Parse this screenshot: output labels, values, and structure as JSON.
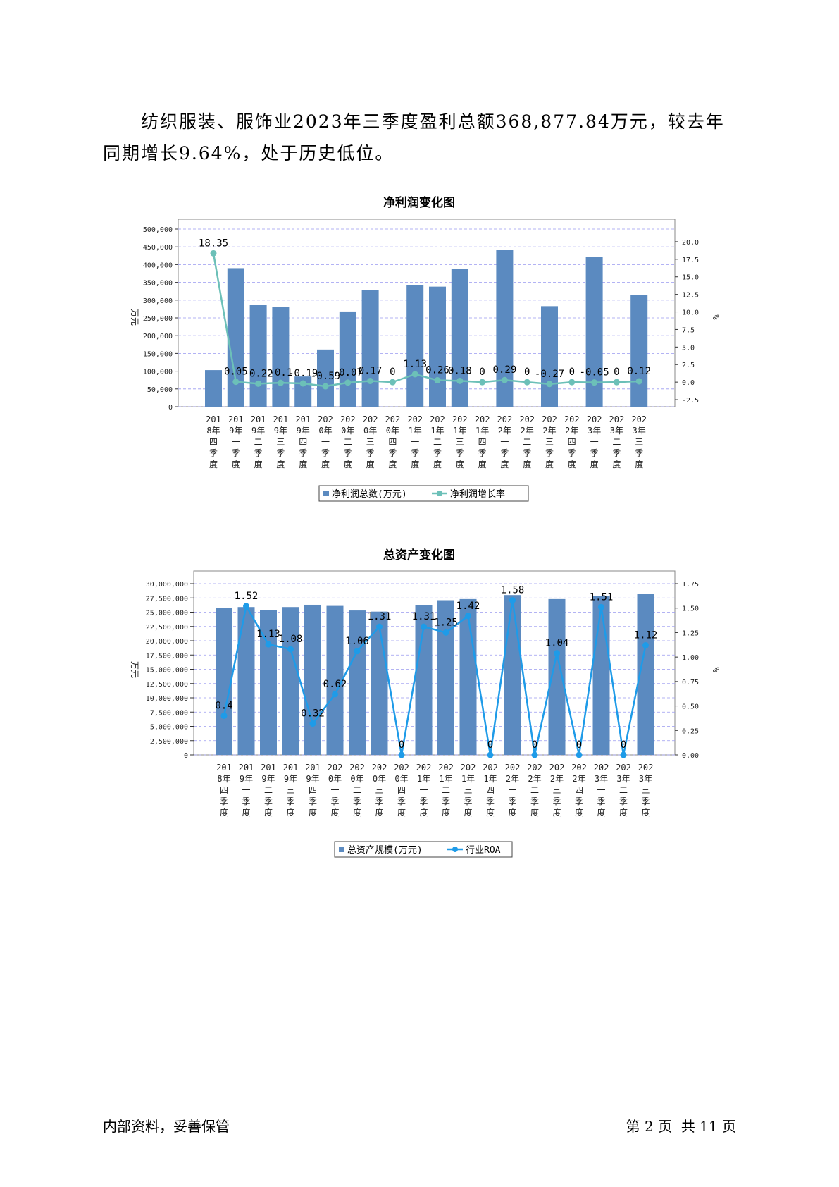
{
  "paragraph": "纺织服装、服饰业2023年三季度盈利总额368,877.84万元，较去年同期增长9.64%，处于历史低位。",
  "footer": {
    "left": "内部资料，妥善保管",
    "right": "第 2 页  共 11 页"
  },
  "colors": {
    "bar": "#5b8ac0",
    "line1": "#6cc0b8",
    "line2": "#1e9be8",
    "grid": "#9a9af0"
  },
  "chart_data": [
    {
      "type": "bar",
      "title": "净利润变化图",
      "categories": [
        "2018年四季度",
        "2019年一季度",
        "2019年二季度",
        "2019年三季度",
        "2019年四季度",
        "2020年一季度",
        "2020年二季度",
        "2020年三季度",
        "2020年四季度",
        "2021年一季度",
        "2021年二季度",
        "2021年三季度",
        "2021年四季度",
        "2022年一季度",
        "2022年二季度",
        "2022年三季度",
        "2022年四季度",
        "2023年一季度",
        "2023年二季度",
        "2023年三季度"
      ],
      "cat_labels": [
        [
          "201",
          "8年",
          "四",
          "季",
          "度"
        ],
        [
          "201",
          "9年",
          "一",
          "季",
          "度"
        ],
        [
          "201",
          "9年",
          "二",
          "季",
          "度"
        ],
        [
          "201",
          "9年",
          "三",
          "季",
          "度"
        ],
        [
          "201",
          "9年",
          "四",
          "季",
          "度"
        ],
        [
          "202",
          "0年",
          "一",
          "季",
          "度"
        ],
        [
          "202",
          "0年",
          "二",
          "季",
          "度"
        ],
        [
          "202",
          "0年",
          "三",
          "季",
          "度"
        ],
        [
          "202",
          "0年",
          "四",
          "季",
          "度"
        ],
        [
          "202",
          "1年",
          "一",
          "季",
          "度"
        ],
        [
          "202",
          "1年",
          "二",
          "季",
          "度"
        ],
        [
          "202",
          "1年",
          "三",
          "季",
          "度"
        ],
        [
          "202",
          "1年",
          "四",
          "季",
          "度"
        ],
        [
          "202",
          "2年",
          "一",
          "季",
          "度"
        ],
        [
          "202",
          "2年",
          "二",
          "季",
          "度"
        ],
        [
          "202",
          "2年",
          "三",
          "季",
          "度"
        ],
        [
          "202",
          "2年",
          "四",
          "季",
          "度"
        ],
        [
          "202",
          "3年",
          "一",
          "季",
          "度"
        ],
        [
          "202",
          "3年",
          "二",
          "季",
          "度"
        ],
        [
          "202",
          "3年",
          "三",
          "季",
          "度"
        ]
      ],
      "series": [
        {
          "name": "净利润总数(万元)",
          "kind": "bar",
          "axis": "left",
          "values": [
            103000,
            390000,
            286000,
            280000,
            85000,
            161000,
            268000,
            328000,
            0,
            343000,
            338000,
            388000,
            0,
            442000,
            0,
            283000,
            0,
            421000,
            0,
            315000
          ]
        },
        {
          "name": "净利润增长率",
          "kind": "line",
          "axis": "right",
          "values": [
            18.35,
            0.05,
            -0.22,
            -0.1,
            -0.19,
            -0.59,
            -0.07,
            0.17,
            0,
            1.13,
            0.26,
            0.18,
            0,
            0.29,
            0,
            -0.27,
            0,
            -0.05,
            0,
            0.12
          ],
          "labels": [
            "18.35",
            "0.05",
            "-0.22",
            "-0.1",
            "-0.19",
            "-0.59",
            "-0.07",
            "0.17",
            "0",
            "1.13",
            "0.26",
            "0.18",
            "0",
            "0.29",
            "0",
            "-0.27",
            "0",
            "-0.05",
            "0",
            "0.12"
          ]
        }
      ],
      "ylabel": "万元",
      "y2label": "%",
      "ylim": [
        0,
        500000
      ],
      "y2lim": [
        -3.5,
        21.8
      ],
      "yticks": [
        "0",
        "50,000",
        "100,000",
        "150,000",
        "200,000",
        "250,000",
        "300,000",
        "350,000",
        "400,000",
        "450,000",
        "500,000"
      ],
      "ytick_values": [
        0,
        50000,
        100000,
        150000,
        200000,
        250000,
        300000,
        350000,
        400000,
        450000,
        500000
      ],
      "y2ticks": [
        "-2.5",
        "0.0",
        "2.5",
        "5.0",
        "7.5",
        "10.0",
        "12.5",
        "15.0",
        "17.5",
        "20.0"
      ],
      "y2tick_values": [
        -2.5,
        0,
        2.5,
        5,
        7.5,
        10,
        12.5,
        15,
        17.5,
        20
      ],
      "grid": true,
      "legend": "bottom"
    },
    {
      "type": "bar",
      "title": "总资产变化图",
      "categories": [
        "2018年四季度",
        "2019年一季度",
        "2019年二季度",
        "2019年三季度",
        "2019年四季度",
        "2020年一季度",
        "2020年二季度",
        "2020年三季度",
        "2020年四季度",
        "2021年一季度",
        "2021年二季度",
        "2021年三季度",
        "2021年四季度",
        "2022年一季度",
        "2022年二季度",
        "2022年三季度",
        "2022年四季度",
        "2023年一季度",
        "2023年二季度",
        "2023年三季度"
      ],
      "cat_labels": [
        [
          "201",
          "8年",
          "四",
          "季",
          "度"
        ],
        [
          "201",
          "9年",
          "一",
          "季",
          "度"
        ],
        [
          "201",
          "9年",
          "二",
          "季",
          "度"
        ],
        [
          "201",
          "9年",
          "三",
          "季",
          "度"
        ],
        [
          "201",
          "9年",
          "四",
          "季",
          "度"
        ],
        [
          "202",
          "0年",
          "一",
          "季",
          "度"
        ],
        [
          "202",
          "0年",
          "二",
          "季",
          "度"
        ],
        [
          "202",
          "0年",
          "三",
          "季",
          "度"
        ],
        [
          "202",
          "0年",
          "四",
          "季",
          "度"
        ],
        [
          "202",
          "1年",
          "一",
          "季",
          "度"
        ],
        [
          "202",
          "1年",
          "二",
          "季",
          "度"
        ],
        [
          "202",
          "1年",
          "三",
          "季",
          "度"
        ],
        [
          "202",
          "1年",
          "四",
          "季",
          "度"
        ],
        [
          "202",
          "2年",
          "一",
          "季",
          "度"
        ],
        [
          "202",
          "2年",
          "二",
          "季",
          "度"
        ],
        [
          "202",
          "2年",
          "三",
          "季",
          "度"
        ],
        [
          "202",
          "2年",
          "四",
          "季",
          "度"
        ],
        [
          "202",
          "3年",
          "一",
          "季",
          "度"
        ],
        [
          "202",
          "3年",
          "二",
          "季",
          "度"
        ],
        [
          "202",
          "3年",
          "三",
          "季",
          "度"
        ]
      ],
      "series": [
        {
          "name": "总资产规模(万元)",
          "kind": "bar",
          "axis": "left",
          "values": [
            25800000,
            25900000,
            25400000,
            25900000,
            26300000,
            26100000,
            25300000,
            25100000,
            0,
            26200000,
            27100000,
            27300000,
            0,
            28000000,
            0,
            27300000,
            0,
            27900000,
            0,
            28200000
          ]
        },
        {
          "name": "行业ROA",
          "kind": "line",
          "axis": "right",
          "values": [
            0.4,
            1.52,
            1.13,
            1.08,
            0.32,
            0.62,
            1.06,
            1.31,
            0,
            1.31,
            1.25,
            1.42,
            0,
            1.58,
            0,
            1.04,
            0,
            1.51,
            0,
            1.12
          ],
          "labels": [
            "0.4",
            "1.52",
            "1.13",
            "1.08",
            "0.32",
            "0.62",
            "1.06",
            "1.31",
            "0",
            "1.31",
            "1.25",
            "1.42",
            "0",
            "1.58",
            "0",
            "1.04",
            "0",
            "1.51",
            "0",
            "1.12"
          ]
        }
      ],
      "ylabel": "万元",
      "y2label": "%",
      "ylim": [
        0,
        30000000
      ],
      "y2lim": [
        0,
        1.75
      ],
      "yticks": [
        "0",
        "2,500,000",
        "5,000,000",
        "7,500,000",
        "10,000,000",
        "12,500,000",
        "15,000,000",
        "17,500,000",
        "20,000,000",
        "22,500,000",
        "25,000,000",
        "27,500,000",
        "30,000,000"
      ],
      "ytick_values": [
        0,
        2500000,
        5000000,
        7500000,
        10000000,
        12500000,
        15000000,
        17500000,
        20000000,
        22500000,
        25000000,
        27500000,
        30000000
      ],
      "y2ticks": [
        "0.00",
        "0.25",
        "0.50",
        "0.75",
        "1.00",
        "1.25",
        "1.50",
        "1.75"
      ],
      "y2tick_values": [
        0,
        0.25,
        0.5,
        0.75,
        1,
        1.25,
        1.5,
        1.75
      ],
      "grid": true,
      "legend": "bottom"
    }
  ]
}
